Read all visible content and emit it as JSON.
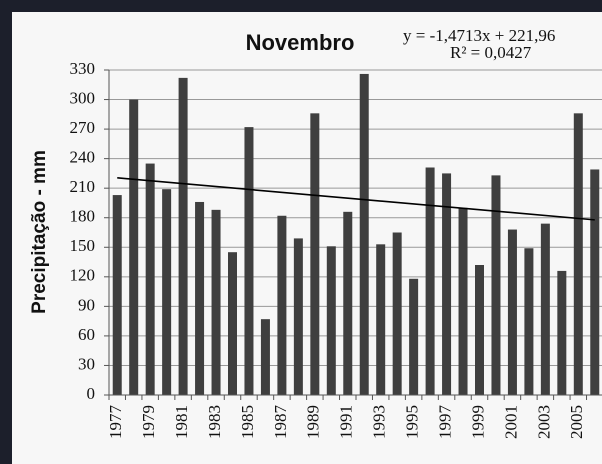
{
  "chart_data": {
    "type": "bar",
    "title": "Novembro",
    "y_label": "Precipitação - mm",
    "categories": [
      "1977",
      null,
      "1979",
      null,
      "1981",
      null,
      "1983",
      null,
      "1985",
      null,
      "1987",
      null,
      "1989",
      null,
      "1991",
      null,
      "1993",
      null,
      "1995",
      null,
      "1997",
      null,
      "1999",
      null,
      "2001",
      null,
      "2003",
      null,
      "2005",
      null
    ],
    "values": [
      203,
      300,
      235,
      209,
      322,
      196,
      188,
      145,
      272,
      77,
      182,
      159,
      286,
      151,
      186,
      326,
      153,
      165,
      118,
      231,
      225,
      190,
      132,
      223,
      168,
      149,
      174,
      126,
      286,
      229
    ],
    "color": "#3f3f3f",
    "ylim": [
      0,
      330
    ],
    "yticks": [
      0,
      30,
      60,
      90,
      120,
      150,
      180,
      210,
      240,
      270,
      300,
      330
    ],
    "grid": true,
    "trendline": {
      "equation": "y = -1,4713x + 221,96",
      "r2": "R² = 0,0427",
      "slope": -1.4713,
      "intercept": 221.96,
      "color": "#000000"
    }
  }
}
